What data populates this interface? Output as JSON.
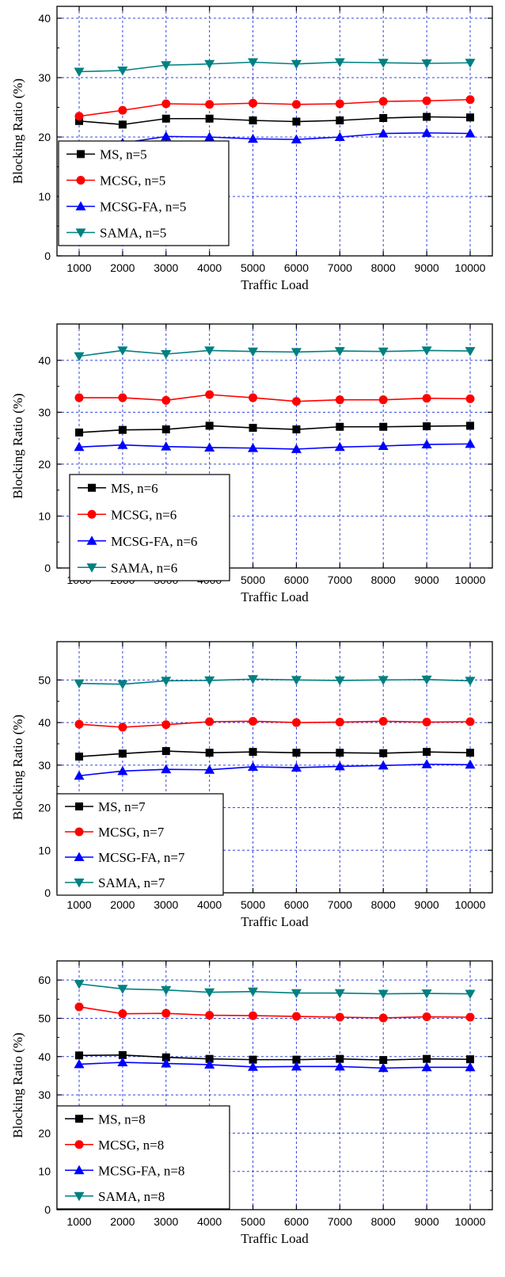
{
  "chart_data": [
    {
      "type": "line",
      "xlabel": "Traffic Load",
      "ylabel": "Blocking Ratio (%)",
      "x": [
        1000,
        2000,
        3000,
        4000,
        5000,
        6000,
        7000,
        8000,
        9000,
        10000
      ],
      "ylim": [
        0,
        42
      ],
      "yticks": [
        0,
        10,
        20,
        30,
        40
      ],
      "grid": true,
      "legend_position": "bottom-left",
      "series": [
        {
          "name": "MS, n=5",
          "color": "#000000",
          "marker": "square",
          "values": [
            22.7,
            22.1,
            23.1,
            23.1,
            22.8,
            22.6,
            22.8,
            23.2,
            23.4,
            23.3
          ]
        },
        {
          "name": "MCSG, n=5",
          "color": "#ff0000",
          "marker": "circle",
          "values": [
            23.5,
            24.5,
            25.6,
            25.5,
            25.7,
            25.5,
            25.6,
            26.0,
            26.1,
            26.3
          ]
        },
        {
          "name": "MCSG-FA, n=5",
          "color": "#0000ff",
          "marker": "triangle-up",
          "values": [
            18.4,
            19.0,
            20.1,
            20.0,
            19.7,
            19.6,
            20.0,
            20.6,
            20.7,
            20.6
          ]
        },
        {
          "name": "SAMA, n=5",
          "color": "#008080",
          "marker": "triangle-down",
          "values": [
            31.0,
            31.2,
            32.1,
            32.3,
            32.6,
            32.3,
            32.6,
            32.5,
            32.4,
            32.5
          ]
        }
      ]
    },
    {
      "type": "line",
      "xlabel": "Traffic Load",
      "ylabel": "Blocking Ratio (%)",
      "x": [
        1000,
        2000,
        3000,
        4000,
        5000,
        6000,
        7000,
        8000,
        9000,
        10000
      ],
      "ylim": [
        0,
        47
      ],
      "yticks": [
        0,
        10,
        20,
        30,
        40
      ],
      "grid": true,
      "legend_position": "bottom-left",
      "series": [
        {
          "name": "MS,  n=6",
          "color": "#000000",
          "marker": "square",
          "values": [
            26.1,
            26.6,
            26.7,
            27.4,
            27.0,
            26.7,
            27.2,
            27.2,
            27.3,
            27.4
          ]
        },
        {
          "name": "MCSG, n=6",
          "color": "#ff0000",
          "marker": "circle",
          "values": [
            32.8,
            32.8,
            32.3,
            33.4,
            32.8,
            32.1,
            32.4,
            32.4,
            32.7,
            32.6
          ]
        },
        {
          "name": "MCSG-FA, n=6",
          "color": "#0000ff",
          "marker": "triangle-up",
          "values": [
            23.3,
            23.7,
            23.4,
            23.2,
            23.1,
            22.9,
            23.3,
            23.5,
            23.8,
            23.9
          ]
        },
        {
          "name": "SAMA, n=6",
          "color": "#008080",
          "marker": "triangle-down",
          "values": [
            40.8,
            41.9,
            41.2,
            41.9,
            41.7,
            41.6,
            41.8,
            41.7,
            41.9,
            41.8
          ]
        }
      ]
    },
    {
      "type": "line",
      "xlabel": "Traffic Load",
      "ylabel": "Blocking Ratio (%)",
      "x": [
        1000,
        2000,
        3000,
        4000,
        5000,
        6000,
        7000,
        8000,
        9000,
        10000
      ],
      "ylim": [
        0,
        59
      ],
      "yticks": [
        0,
        10,
        20,
        30,
        40,
        50
      ],
      "grid": true,
      "legend_position": "bottom-left",
      "series": [
        {
          "name": "MS, n=7",
          "color": "#000000",
          "marker": "square",
          "values": [
            32.0,
            32.7,
            33.3,
            32.9,
            33.1,
            32.9,
            32.9,
            32.8,
            33.1,
            32.9
          ]
        },
        {
          "name": "MCSG, n=7",
          "color": "#ff0000",
          "marker": "circle",
          "values": [
            39.6,
            38.9,
            39.5,
            40.2,
            40.3,
            40.0,
            40.1,
            40.3,
            40.1,
            40.2
          ]
        },
        {
          "name": "MCSG-FA, n=7",
          "color": "#0000ff",
          "marker": "triangle-up",
          "values": [
            27.5,
            28.6,
            29.0,
            28.9,
            29.6,
            29.4,
            29.7,
            29.9,
            30.2,
            30.1
          ]
        },
        {
          "name": "SAMA, n=7",
          "color": "#008080",
          "marker": "triangle-down",
          "values": [
            49.2,
            49.0,
            49.8,
            49.9,
            50.2,
            50.0,
            49.9,
            50.0,
            50.1,
            49.8
          ]
        }
      ]
    },
    {
      "type": "line",
      "xlabel": "Traffic Load",
      "ylabel": "Blocking Ratio (%)",
      "x": [
        1000,
        2000,
        3000,
        4000,
        5000,
        6000,
        7000,
        8000,
        9000,
        10000
      ],
      "ylim": [
        0,
        65
      ],
      "yticks": [
        0,
        10,
        20,
        30,
        40,
        50,
        60
      ],
      "grid": true,
      "legend_position": "bottom-left",
      "series": [
        {
          "name": "MS,  n=8",
          "color": "#000000",
          "marker": "square",
          "values": [
            40.3,
            40.4,
            39.8,
            39.4,
            39.2,
            39.2,
            39.4,
            39.1,
            39.4,
            39.3
          ]
        },
        {
          "name": "MCSG, n=8",
          "color": "#ff0000",
          "marker": "circle",
          "values": [
            53.0,
            51.2,
            51.3,
            50.8,
            50.7,
            50.5,
            50.3,
            50.1,
            50.4,
            50.3
          ]
        },
        {
          "name": "MCSG-FA, n=8",
          "color": "#0000ff",
          "marker": "triangle-up",
          "values": [
            38.0,
            38.5,
            38.2,
            37.9,
            37.3,
            37.4,
            37.4,
            37.0,
            37.2,
            37.2
          ]
        },
        {
          "name": "SAMA, n=8",
          "color": "#008080",
          "marker": "triangle-down",
          "values": [
            59.0,
            57.7,
            57.4,
            56.8,
            57.0,
            56.6,
            56.6,
            56.4,
            56.5,
            56.4
          ]
        }
      ]
    }
  ]
}
